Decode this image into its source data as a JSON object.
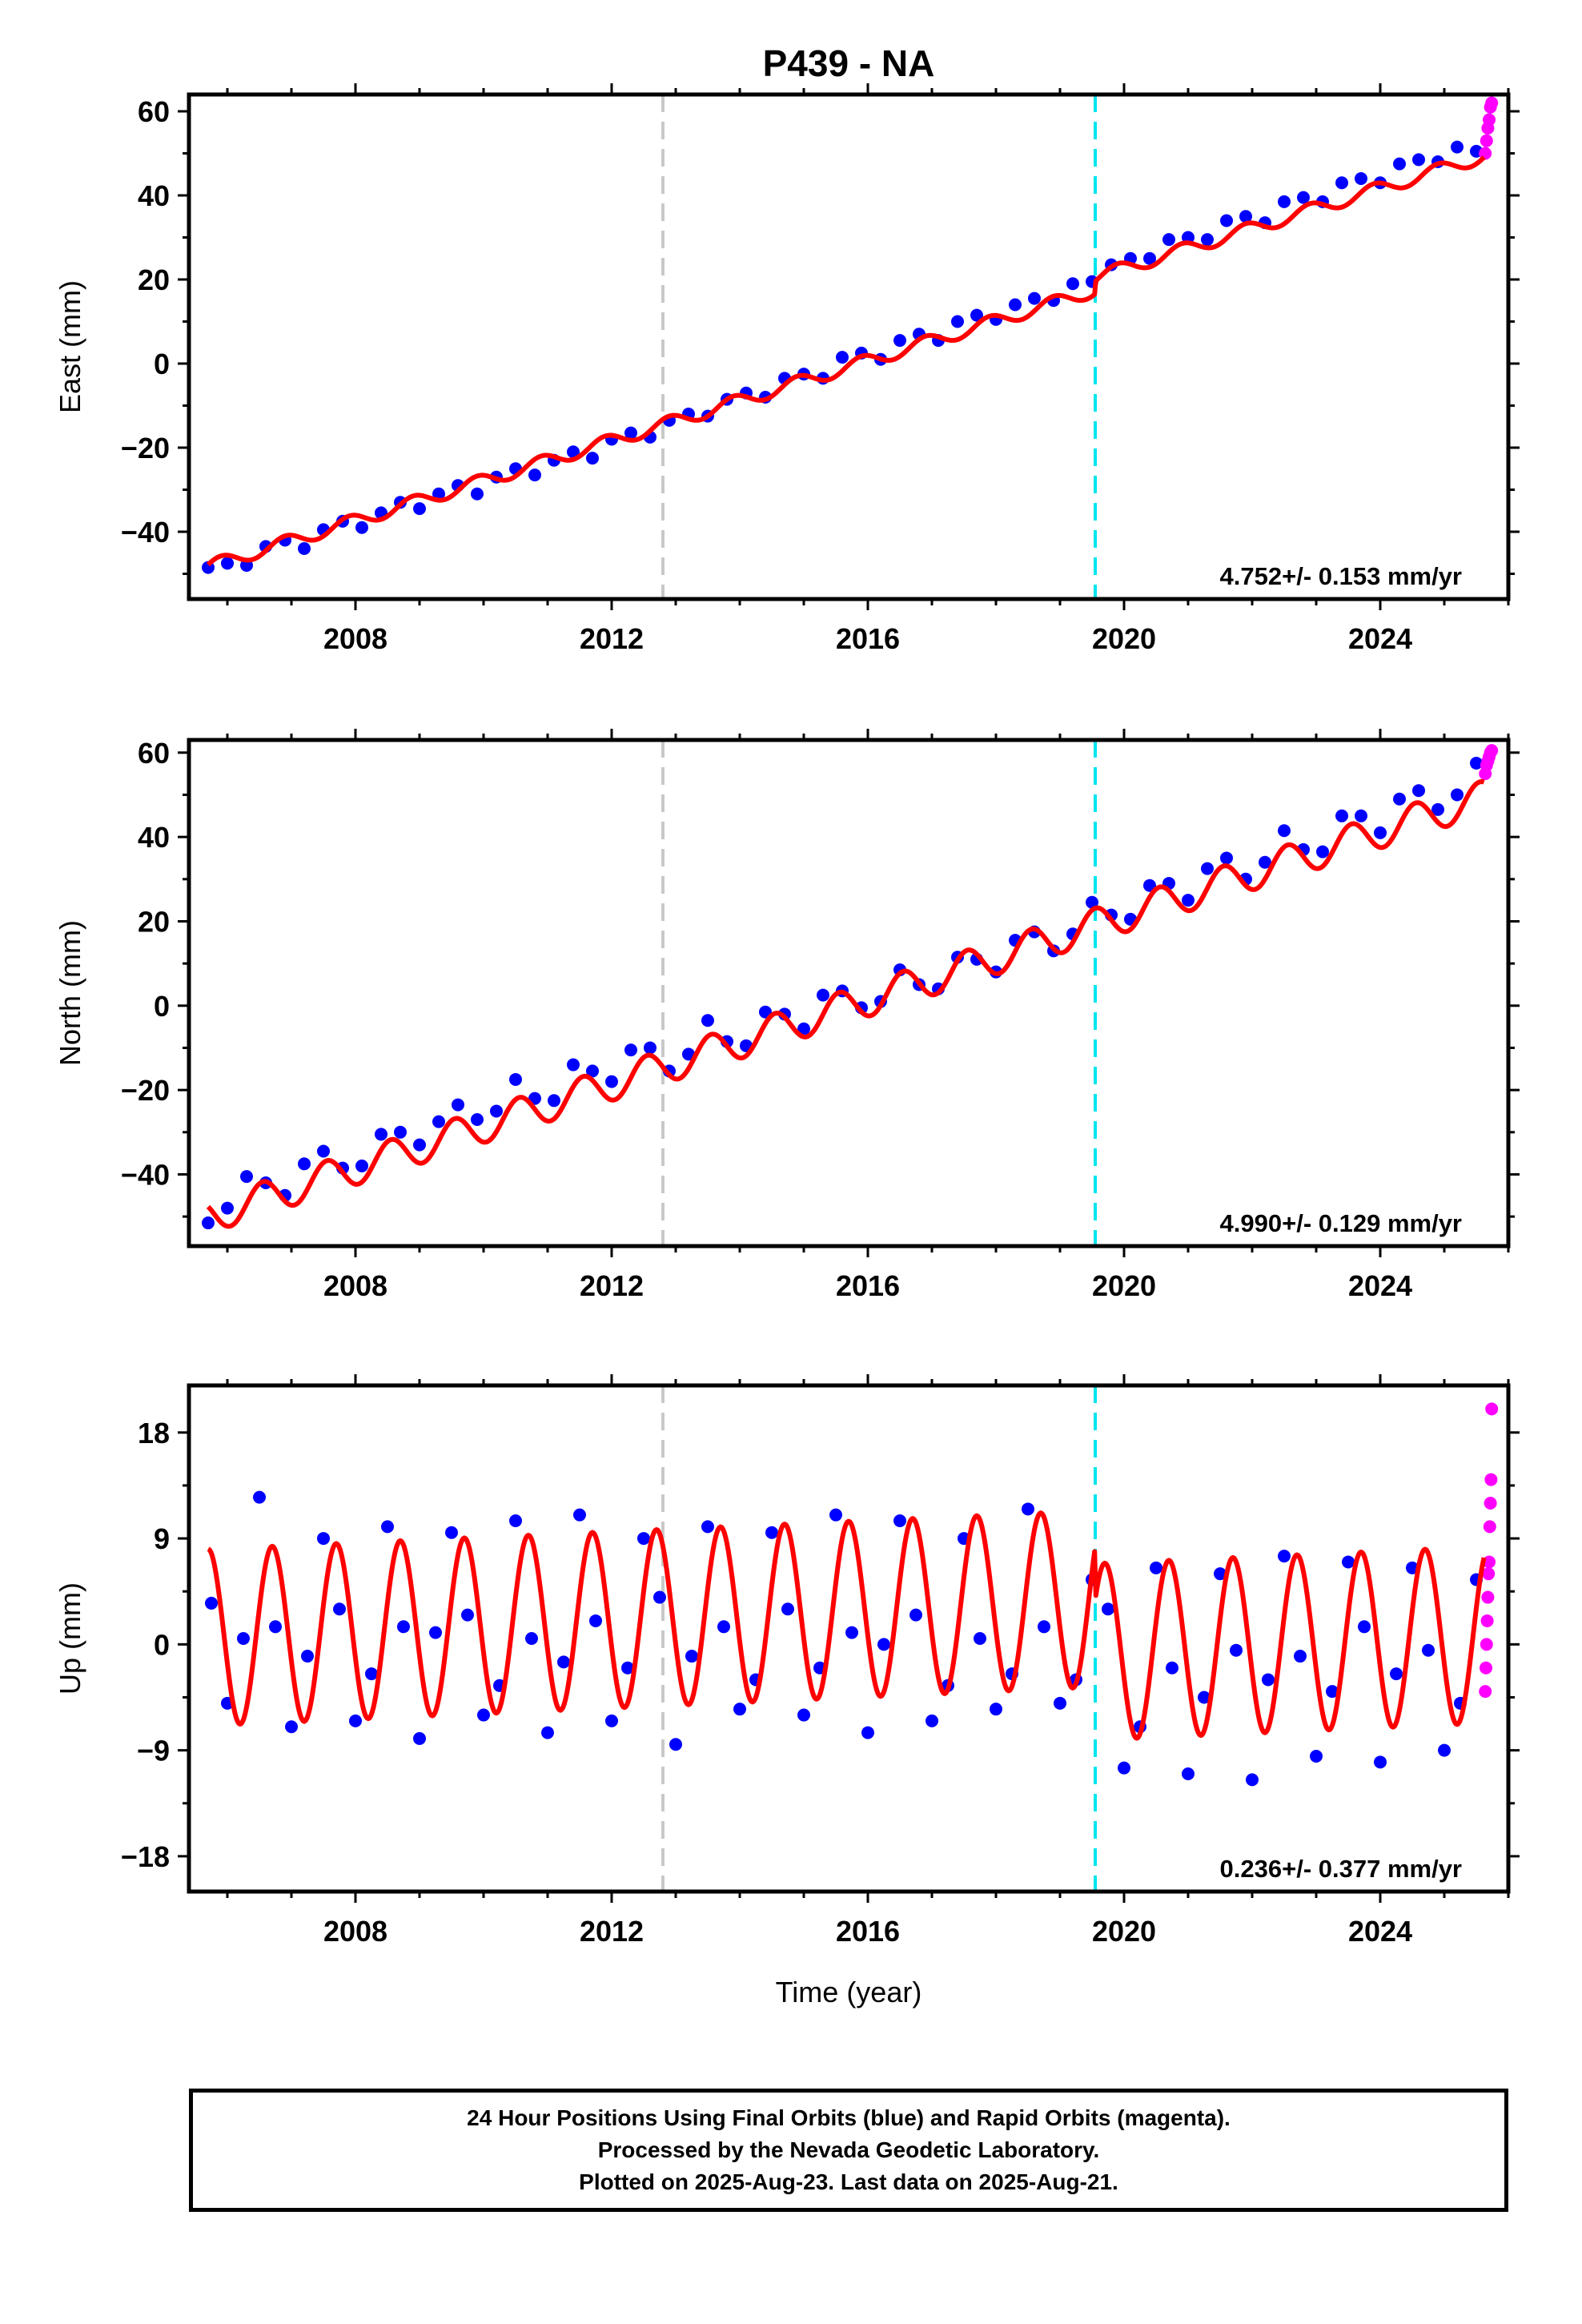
{
  "title": "P439 - NA",
  "xlabel": "Time (year)",
  "colors": {
    "final_orbits": "#0000ff",
    "rapid_orbits": "#ff00ff",
    "model_fit": "#ff0000",
    "marker_gray": "#c8c8c8",
    "marker_cyan": "#00e5ee"
  },
  "footer": {
    "line1": "24 Hour Positions Using Final Orbits (blue) and Rapid Orbits (magenta).",
    "line2": "Processed by the Nevada Geodetic Laboratory.",
    "line3": "Plotted on 2025-Aug-23. Last data on 2025-Aug-21."
  },
  "chart_data": [
    {
      "type": "scatter",
      "component": "East",
      "ylabel": "East (mm)",
      "xlim": [
        2005.4,
        2026.0
      ],
      "ylim": [
        -56,
        64
      ],
      "xticks": [
        2008,
        2012,
        2016,
        2020,
        2024
      ],
      "yticks": [
        -40,
        -20,
        0,
        20,
        40,
        60
      ],
      "ytick_labels": [
        "−40",
        "−20",
        "0",
        "20",
        "40",
        "60"
      ],
      "rate_label": "4.752+/- 0.153 mm/yr",
      "event_lines": [
        {
          "x": 2012.8,
          "color": "gray"
        },
        {
          "x": 2019.55,
          "color": "cyan"
        }
      ],
      "model": {
        "start": 2005.7,
        "end": 2025.62,
        "intercept_at_start": -48.3,
        "rate": 4.752,
        "annual_amplitude": 1.6,
        "annual_phase_peak": 0.9,
        "offsets": [
          {
            "x": 2019.55,
            "value": 3.0
          }
        ]
      },
      "series": [
        {
          "name": "Final Orbits",
          "color": "blue",
          "x": [
            2005.7,
            2006.0,
            2006.3,
            2006.6,
            2006.9,
            2007.2,
            2007.5,
            2007.8,
            2008.1,
            2008.4,
            2008.7,
            2009.0,
            2009.3,
            2009.6,
            2009.9,
            2010.2,
            2010.5,
            2010.8,
            2011.1,
            2011.4,
            2011.7,
            2012.0,
            2012.3,
            2012.6,
            2012.9,
            2013.2,
            2013.5,
            2013.8,
            2014.1,
            2014.4,
            2014.7,
            2015.0,
            2015.3,
            2015.6,
            2015.9,
            2016.2,
            2016.5,
            2016.8,
            2017.1,
            2017.4,
            2017.7,
            2018.0,
            2018.3,
            2018.6,
            2018.9,
            2019.2,
            2019.5,
            2019.8,
            2020.1,
            2020.4,
            2020.7,
            2021.0,
            2021.3,
            2021.6,
            2021.9,
            2022.2,
            2022.5,
            2022.8,
            2023.1,
            2023.4,
            2023.7,
            2024.0,
            2024.3,
            2024.6,
            2024.9,
            2025.2,
            2025.5
          ],
          "y": [
            -48.5,
            -47.5,
            -48.0,
            -43.5,
            -42.0,
            -44.0,
            -39.5,
            -37.5,
            -39.0,
            -35.5,
            -33.0,
            -34.5,
            -31.0,
            -29.0,
            -31.0,
            -27.0,
            -25.0,
            -26.5,
            -23.0,
            -21.0,
            -22.5,
            -18.0,
            -16.5,
            -17.5,
            -13.5,
            -12.0,
            -12.5,
            -8.5,
            -7.0,
            -8.0,
            -3.5,
            -2.5,
            -3.5,
            1.5,
            2.5,
            1.0,
            5.5,
            7.0,
            5.5,
            10.0,
            11.5,
            10.5,
            14.0,
            15.5,
            15.0,
            19.0,
            19.5,
            23.5,
            25.0,
            25.0,
            29.5,
            30.0,
            29.5,
            34.0,
            35.0,
            33.5,
            38.5,
            39.5,
            38.5,
            43.0,
            44.0,
            43.0,
            47.5,
            48.5,
            48.0,
            51.5,
            50.5
          ]
        },
        {
          "name": "Rapid Orbits",
          "color": "magenta",
          "x": [
            2025.64,
            2025.66,
            2025.68,
            2025.7,
            2025.72,
            2025.74
          ],
          "y": [
            50,
            53,
            56,
            58,
            61,
            62
          ]
        }
      ]
    },
    {
      "type": "scatter",
      "component": "North",
      "ylabel": "North (mm)",
      "xlim": [
        2005.4,
        2026.0
      ],
      "ylim": [
        -57,
        63
      ],
      "xticks": [
        2008,
        2012,
        2016,
        2020,
        2024
      ],
      "yticks": [
        -40,
        -20,
        0,
        20,
        40,
        60
      ],
      "ytick_labels": [
        "−40",
        "−20",
        "0",
        "20",
        "40",
        "60"
      ],
      "rate_label": "4.990+/- 0.129 mm/yr",
      "event_lines": [
        {
          "x": 2012.8,
          "color": "gray"
        },
        {
          "x": 2019.55,
          "color": "cyan"
        }
      ],
      "model": {
        "start": 2005.7,
        "end": 2025.62,
        "intercept_at_start": -50.0,
        "rate": 4.99,
        "annual_amplitude": 4.0,
        "annual_phase_peak": 0.55,
        "offsets": []
      },
      "series": [
        {
          "name": "Final Orbits",
          "color": "blue",
          "x": [
            2005.7,
            2006.0,
            2006.3,
            2006.6,
            2006.9,
            2007.2,
            2007.5,
            2007.8,
            2008.1,
            2008.4,
            2008.7,
            2009.0,
            2009.3,
            2009.6,
            2009.9,
            2010.2,
            2010.5,
            2010.8,
            2011.1,
            2011.4,
            2011.7,
            2012.0,
            2012.3,
            2012.6,
            2012.9,
            2013.2,
            2013.5,
            2013.8,
            2014.1,
            2014.4,
            2014.7,
            2015.0,
            2015.3,
            2015.6,
            2015.9,
            2016.2,
            2016.5,
            2016.8,
            2017.1,
            2017.4,
            2017.7,
            2018.0,
            2018.3,
            2018.6,
            2018.9,
            2019.2,
            2019.5,
            2019.8,
            2020.1,
            2020.4,
            2020.7,
            2021.0,
            2021.3,
            2021.6,
            2021.9,
            2022.2,
            2022.5,
            2022.8,
            2023.1,
            2023.4,
            2023.7,
            2024.0,
            2024.3,
            2024.6,
            2024.9,
            2025.2,
            2025.5
          ],
          "y": [
            -51.5,
            -48.0,
            -40.5,
            -42.0,
            -45.0,
            -37.5,
            -34.5,
            -38.5,
            -38.0,
            -30.5,
            -30.0,
            -33.0,
            -27.5,
            -23.5,
            -27.0,
            -25.0,
            -17.5,
            -22.0,
            -22.5,
            -14.0,
            -15.5,
            -18.0,
            -10.5,
            -10.0,
            -15.5,
            -11.5,
            -3.5,
            -8.5,
            -9.5,
            -1.5,
            -2.0,
            -5.5,
            2.5,
            3.5,
            -0.5,
            1.0,
            8.5,
            5.0,
            4.0,
            11.5,
            11.0,
            8.0,
            15.5,
            17.5,
            13.0,
            17.0,
            24.5,
            21.5,
            20.5,
            28.5,
            29.0,
            25.0,
            32.5,
            35.0,
            30.0,
            34.0,
            41.5,
            37.0,
            36.5,
            45.0,
            45.0,
            41.0,
            49.0,
            51.0,
            46.5,
            50.0,
            57.5
          ]
        },
        {
          "name": "Rapid Orbits",
          "color": "magenta",
          "x": [
            2025.64,
            2025.66,
            2025.68,
            2025.7,
            2025.72,
            2025.74
          ],
          "y": [
            55,
            57,
            58,
            59,
            60,
            60.5
          ]
        }
      ]
    },
    {
      "type": "scatter",
      "component": "Up",
      "ylabel": "Up (mm)",
      "xlim": [
        2005.4,
        2026.0
      ],
      "ylim": [
        -21,
        22
      ],
      "xticks": [
        2008,
        2012,
        2016,
        2020,
        2024
      ],
      "yticks": [
        -18,
        -9,
        0,
        9,
        18
      ],
      "ytick_labels": [
        "−18",
        "−9",
        "0",
        "9",
        "18"
      ],
      "rate_label": "0.236+/- 0.377 mm/yr",
      "event_lines": [
        {
          "x": 2012.8,
          "color": "gray"
        },
        {
          "x": 2019.55,
          "color": "cyan"
        }
      ],
      "model": {
        "start": 2005.7,
        "end": 2025.62,
        "intercept_at_start": 0.6,
        "rate": 0.236,
        "annual_amplitude": 7.5,
        "annual_phase_peak": 0.7,
        "offsets": [
          {
            "x": 2019.55,
            "value": -4.5
          }
        ]
      },
      "series": [
        {
          "name": "Final Orbits",
          "color": "blue",
          "x": [
            2005.75,
            2006.0,
            2006.25,
            2006.5,
            2006.75,
            2007.0,
            2007.25,
            2007.5,
            2007.75,
            2008.0,
            2008.25,
            2008.5,
            2008.75,
            2009.0,
            2009.25,
            2009.5,
            2009.75,
            2010.0,
            2010.25,
            2010.5,
            2010.75,
            2011.0,
            2011.25,
            2011.5,
            2011.75,
            2012.0,
            2012.25,
            2012.5,
            2012.75,
            2013.0,
            2013.25,
            2013.5,
            2013.75,
            2014.0,
            2014.25,
            2014.5,
            2014.75,
            2015.0,
            2015.25,
            2015.5,
            2015.75,
            2016.0,
            2016.25,
            2016.5,
            2016.75,
            2017.0,
            2017.25,
            2017.5,
            2017.75,
            2018.0,
            2018.25,
            2018.5,
            2018.75,
            2019.0,
            2019.25,
            2019.5,
            2019.75,
            2020.0,
            2020.25,
            2020.5,
            2020.75,
            2021.0,
            2021.25,
            2021.5,
            2021.75,
            2022.0,
            2022.25,
            2022.5,
            2022.75,
            2023.0,
            2023.25,
            2023.5,
            2023.75,
            2024.0,
            2024.25,
            2024.5,
            2024.75,
            2025.0,
            2025.25,
            2025.5
          ],
          "y": [
            3.5,
            -5.0,
            0.5,
            12.5,
            1.5,
            -7.0,
            -1.0,
            9.0,
            3.0,
            -6.5,
            -2.5,
            10.0,
            1.5,
            -8.0,
            1.0,
            9.5,
            2.5,
            -6.0,
            -3.5,
            10.5,
            0.5,
            -7.5,
            -1.5,
            11.0,
            2.0,
            -6.5,
            -2.0,
            9.0,
            4.0,
            -8.5,
            -1.0,
            10.0,
            1.5,
            -5.5,
            -3.0,
            9.5,
            3.0,
            -6.0,
            -2.0,
            11.0,
            1.0,
            -7.5,
            0.0,
            10.5,
            2.5,
            -6.5,
            -3.5,
            9.0,
            0.5,
            -5.5,
            -2.5,
            11.5,
            1.5,
            -5.0,
            -3.0,
            5.5,
            3.0,
            -10.5,
            -7.0,
            6.5,
            -2.0,
            -11.0,
            -4.5,
            6.0,
            -0.5,
            -11.5,
            -3.0,
            7.5,
            -1.0,
            -9.5,
            -4.0,
            7.0,
            1.5,
            -10.0,
            -2.5,
            6.5,
            -0.5,
            -9.0,
            -5.0,
            5.5
          ]
        },
        {
          "name": "Rapid Orbits",
          "color": "magenta",
          "x": [
            2025.64,
            2025.65,
            2025.66,
            2025.67,
            2025.68,
            2025.69,
            2025.7,
            2025.71,
            2025.72,
            2025.73,
            2025.74
          ],
          "y": [
            -4,
            -2,
            0,
            2,
            4,
            6,
            7,
            10,
            12,
            14,
            20
          ]
        }
      ]
    }
  ]
}
